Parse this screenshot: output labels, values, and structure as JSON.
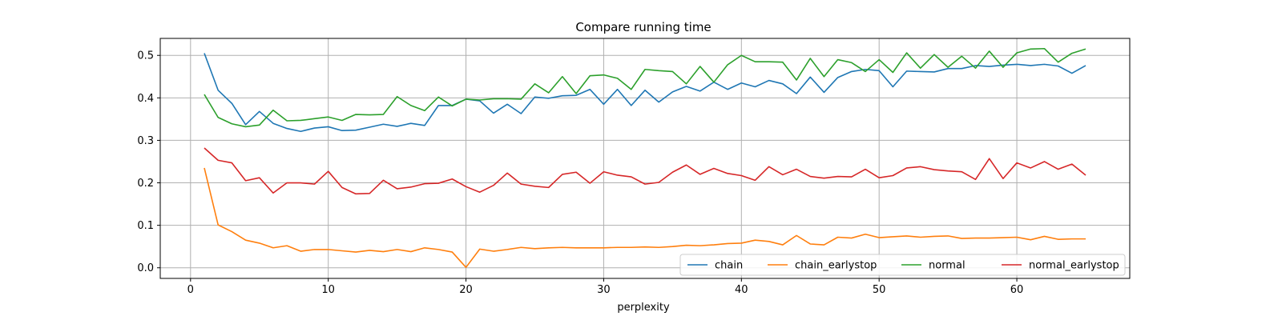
{
  "chart_data": {
    "type": "line",
    "title": "Compare running time",
    "xlabel": "perplexity",
    "ylabel": "",
    "xlim": [
      -2.2,
      68.2
    ],
    "ylim": [
      -0.025,
      0.54
    ],
    "xticks": [
      0,
      10,
      20,
      30,
      40,
      50,
      60
    ],
    "yticks": [
      0.0,
      0.1,
      0.2,
      0.3,
      0.4,
      0.5
    ],
    "grid": true,
    "legend_position": "bottom-right",
    "x": [
      1,
      2,
      3,
      4,
      5,
      6,
      7,
      8,
      9,
      10,
      11,
      12,
      13,
      14,
      15,
      16,
      17,
      18,
      19,
      20,
      21,
      22,
      23,
      24,
      25,
      26,
      27,
      28,
      29,
      30,
      31,
      32,
      33,
      34,
      35,
      36,
      37,
      38,
      39,
      40,
      41,
      42,
      43,
      44,
      45,
      46,
      47,
      48,
      49,
      50,
      51,
      52,
      53,
      54,
      55,
      56,
      57,
      58,
      59,
      60,
      61,
      62,
      63,
      64,
      65
    ],
    "series": [
      {
        "name": "chain",
        "color": "#1f77b4",
        "values": [
          0.505,
          0.418,
          0.387,
          0.337,
          0.368,
          0.34,
          0.328,
          0.321,
          0.329,
          0.332,
          0.323,
          0.324,
          0.331,
          0.338,
          0.333,
          0.34,
          0.335,
          0.382,
          0.382,
          0.397,
          0.393,
          0.364,
          0.385,
          0.363,
          0.402,
          0.399,
          0.405,
          0.406,
          0.42,
          0.385,
          0.42,
          0.382,
          0.418,
          0.39,
          0.414,
          0.427,
          0.416,
          0.437,
          0.42,
          0.435,
          0.426,
          0.441,
          0.433,
          0.41,
          0.449,
          0.413,
          0.448,
          0.462,
          0.467,
          0.464,
          0.426,
          0.463,
          0.462,
          0.461,
          0.469,
          0.469,
          0.476,
          0.474,
          0.477,
          0.479,
          0.476,
          0.479,
          0.475,
          0.458,
          0.476
        ]
      },
      {
        "name": "chain_earlystop",
        "color": "#ff7f0e",
        "values": [
          0.235,
          0.101,
          0.085,
          0.065,
          0.058,
          0.047,
          0.052,
          0.039,
          0.043,
          0.043,
          0.04,
          0.037,
          0.041,
          0.038,
          0.043,
          0.038,
          0.047,
          0.043,
          0.037,
          0.001,
          0.044,
          0.039,
          0.043,
          0.048,
          0.045,
          0.047,
          0.048,
          0.047,
          0.047,
          0.047,
          0.048,
          0.048,
          0.049,
          0.048,
          0.05,
          0.053,
          0.052,
          0.054,
          0.057,
          0.058,
          0.065,
          0.062,
          0.054,
          0.076,
          0.056,
          0.054,
          0.072,
          0.07,
          0.079,
          0.071,
          0.073,
          0.075,
          0.072,
          0.074,
          0.075,
          0.069,
          0.07,
          0.07,
          0.071,
          0.072,
          0.066,
          0.074,
          0.067,
          0.068,
          0.068
        ]
      },
      {
        "name": "normal",
        "color": "#2ca02c",
        "values": [
          0.408,
          0.354,
          0.339,
          0.332,
          0.336,
          0.371,
          0.346,
          0.347,
          0.351,
          0.355,
          0.347,
          0.361,
          0.36,
          0.361,
          0.403,
          0.382,
          0.37,
          0.402,
          0.381,
          0.397,
          0.395,
          0.398,
          0.398,
          0.397,
          0.433,
          0.412,
          0.45,
          0.41,
          0.452,
          0.454,
          0.446,
          0.42,
          0.467,
          0.464,
          0.462,
          0.433,
          0.474,
          0.437,
          0.478,
          0.5,
          0.485,
          0.485,
          0.484,
          0.442,
          0.493,
          0.45,
          0.49,
          0.483,
          0.462,
          0.49,
          0.46,
          0.506,
          0.47,
          0.502,
          0.472,
          0.498,
          0.47,
          0.51,
          0.472,
          0.506,
          0.515,
          0.516,
          0.484,
          0.505,
          0.515
        ]
      },
      {
        "name": "normal_earlystop",
        "color": "#d62728",
        "values": [
          0.282,
          0.253,
          0.247,
          0.205,
          0.212,
          0.176,
          0.2,
          0.2,
          0.197,
          0.227,
          0.189,
          0.174,
          0.175,
          0.206,
          0.186,
          0.19,
          0.198,
          0.199,
          0.209,
          0.191,
          0.178,
          0.194,
          0.223,
          0.197,
          0.192,
          0.189,
          0.22,
          0.225,
          0.199,
          0.226,
          0.218,
          0.214,
          0.197,
          0.201,
          0.225,
          0.242,
          0.22,
          0.234,
          0.222,
          0.217,
          0.206,
          0.238,
          0.219,
          0.232,
          0.215,
          0.211,
          0.215,
          0.214,
          0.232,
          0.212,
          0.217,
          0.235,
          0.238,
          0.231,
          0.228,
          0.226,
          0.208,
          0.257,
          0.21,
          0.247,
          0.235,
          0.25,
          0.232,
          0.244,
          0.218
        ]
      }
    ]
  }
}
